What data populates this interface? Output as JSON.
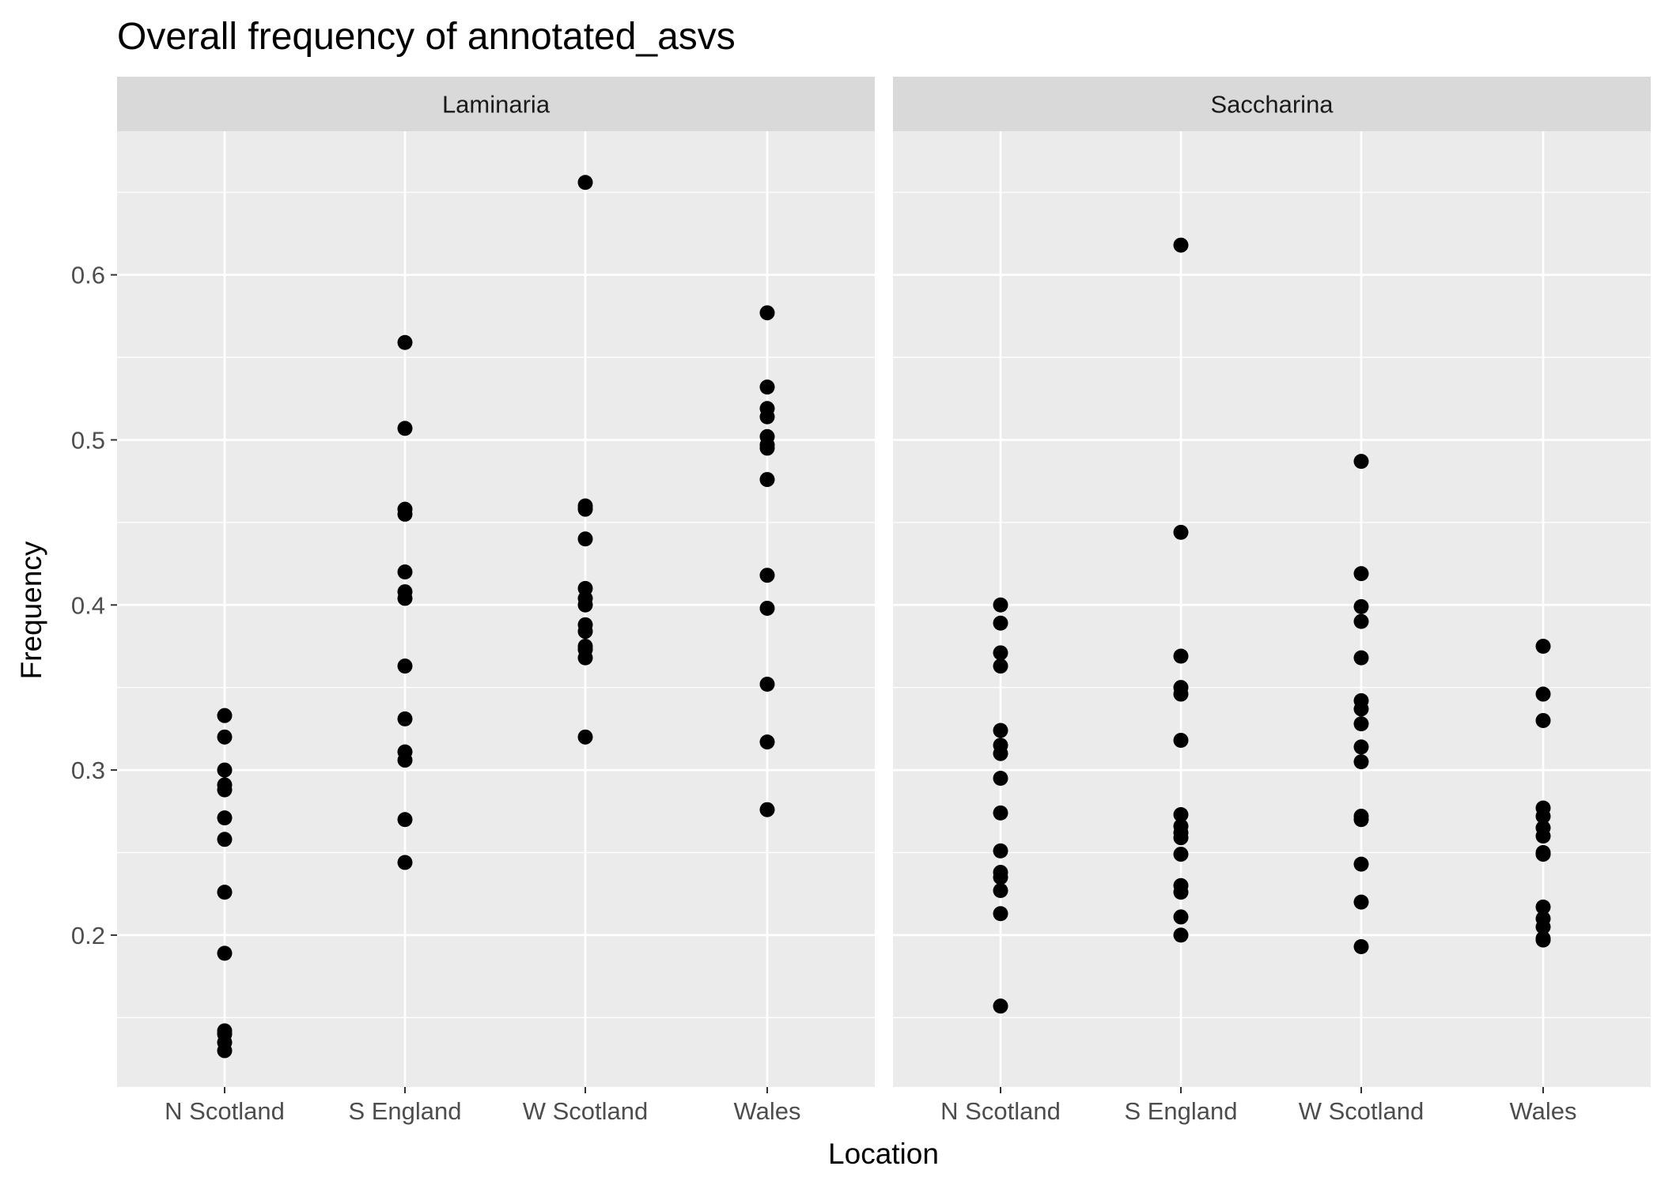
{
  "chart_data": {
    "type": "scatter",
    "title": "Overall frequency of annotated_asvs",
    "xlabel": "Location",
    "ylabel": "Frequency",
    "categories": [
      "N Scotland",
      "S England",
      "W Scotland",
      "Wales"
    ],
    "ylim": [
      0.108,
      0.687
    ],
    "yticks": [
      0.2,
      0.3,
      0.4,
      0.5,
      0.6
    ],
    "ytick_labels": [
      "0.2",
      "0.3",
      "0.4",
      "0.5",
      "0.6"
    ],
    "grid": true,
    "colors": {
      "panel_bg": "#ebebeb",
      "strip_bg": "#d9d9d9",
      "grid": "#ffffff",
      "point": "#000000",
      "tick": "#333333"
    },
    "facets": [
      {
        "name": "Laminaria",
        "series": [
          {
            "category": "N Scotland",
            "values": [
              0.333,
              0.32,
              0.3,
              0.291,
              0.288,
              0.271,
              0.258,
              0.226,
              0.189,
              0.142,
              0.14,
              0.135,
              0.13
            ]
          },
          {
            "category": "S England",
            "values": [
              0.559,
              0.507,
              0.458,
              0.455,
              0.42,
              0.408,
              0.404,
              0.363,
              0.331,
              0.311,
              0.306,
              0.27,
              0.244
            ]
          },
          {
            "category": "W Scotland",
            "values": [
              0.656,
              0.46,
              0.458,
              0.44,
              0.41,
              0.404,
              0.4,
              0.388,
              0.384,
              0.375,
              0.373,
              0.368,
              0.32
            ]
          },
          {
            "category": "Wales",
            "values": [
              0.577,
              0.532,
              0.519,
              0.514,
              0.502,
              0.497,
              0.495,
              0.476,
              0.418,
              0.398,
              0.352,
              0.317,
              0.276
            ]
          }
        ]
      },
      {
        "name": "Saccharina",
        "series": [
          {
            "category": "N Scotland",
            "values": [
              0.4,
              0.389,
              0.371,
              0.363,
              0.324,
              0.315,
              0.31,
              0.295,
              0.274,
              0.251,
              0.238,
              0.235,
              0.227,
              0.213,
              0.157
            ]
          },
          {
            "category": "S England",
            "values": [
              0.618,
              0.444,
              0.369,
              0.35,
              0.346,
              0.318,
              0.273,
              0.266,
              0.262,
              0.259,
              0.249,
              0.23,
              0.226,
              0.211,
              0.2
            ]
          },
          {
            "category": "W Scotland",
            "values": [
              0.487,
              0.419,
              0.399,
              0.39,
              0.368,
              0.342,
              0.337,
              0.328,
              0.314,
              0.305,
              0.272,
              0.27,
              0.243,
              0.22,
              0.193
            ]
          },
          {
            "category": "Wales",
            "values": [
              0.375,
              0.346,
              0.33,
              0.277,
              0.272,
              0.265,
              0.26,
              0.25,
              0.249,
              0.217,
              0.21,
              0.205,
              0.198,
              0.197
            ]
          }
        ]
      }
    ]
  }
}
